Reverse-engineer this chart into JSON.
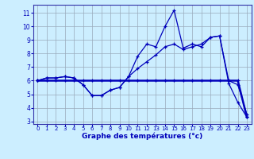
{
  "xlabel": "Graphe des températures (°c)",
  "xlim": [
    -0.5,
    23.5
  ],
  "ylim": [
    2.8,
    11.6
  ],
  "yticks": [
    3,
    4,
    5,
    6,
    7,
    8,
    9,
    10,
    11
  ],
  "xticks": [
    0,
    1,
    2,
    3,
    4,
    5,
    6,
    7,
    8,
    9,
    10,
    11,
    12,
    13,
    14,
    15,
    16,
    17,
    18,
    19,
    20,
    21,
    22,
    23
  ],
  "bg_color": "#cceeff",
  "line_color": "#0000bb",
  "grid_color": "#99aabb",
  "line1_x": [
    0,
    1,
    2,
    3,
    4,
    5,
    6,
    7,
    8,
    9,
    10,
    11,
    12,
    13,
    14,
    15,
    16,
    17,
    18,
    19,
    20,
    21,
    22,
    23
  ],
  "line1_y": [
    6.0,
    6.2,
    6.2,
    6.3,
    6.2,
    5.7,
    4.9,
    4.9,
    5.3,
    5.5,
    6.3,
    7.8,
    8.7,
    8.5,
    10.0,
    11.2,
    8.4,
    8.7,
    8.5,
    9.2,
    9.3,
    5.8,
    4.4,
    3.3
  ],
  "line2_x": [
    0,
    1,
    2,
    3,
    4,
    5,
    6,
    7,
    8,
    9,
    10,
    11,
    12,
    13,
    14,
    15,
    16,
    17,
    18,
    19,
    20,
    21,
    22,
    23
  ],
  "line2_y": [
    6.0,
    6.2,
    6.2,
    6.3,
    6.2,
    5.7,
    4.9,
    4.9,
    5.3,
    5.5,
    6.3,
    6.9,
    7.4,
    7.9,
    8.5,
    8.7,
    8.3,
    8.5,
    8.7,
    9.2,
    9.3,
    6.0,
    5.7,
    3.5
  ],
  "line3_x": [
    0,
    1,
    2,
    3,
    4,
    5,
    6,
    7,
    8,
    9,
    10,
    11,
    12,
    13,
    14,
    15,
    16,
    17,
    18,
    19,
    20,
    21,
    22,
    23
  ],
  "line3_y": [
    6.0,
    6.0,
    6.0,
    6.0,
    6.0,
    6.0,
    6.0,
    6.0,
    6.0,
    6.0,
    6.0,
    6.0,
    6.0,
    6.0,
    6.0,
    6.0,
    6.0,
    6.0,
    6.0,
    6.0,
    6.0,
    6.0,
    6.0,
    3.3
  ]
}
